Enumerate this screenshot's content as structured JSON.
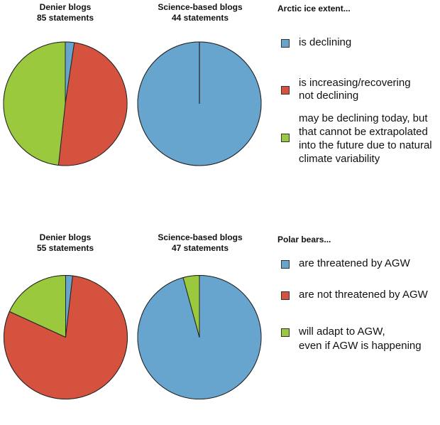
{
  "colors": {
    "blue": "#67a5cf",
    "red": "#d4523e",
    "green": "#9bc93d",
    "outline": "#222222"
  },
  "chart_data": [
    {
      "type": "pie",
      "title": "Arctic ice extent...",
      "legend": [
        "is declining",
        "is increasing/recovering not declining",
        "may be declining today, but that cannot be extrapolated into the future due to natural climate variability"
      ],
      "legend_position": "right",
      "pies": [
        {
          "title": "Denier blogs",
          "subtitle": "85  statements",
          "total": 85,
          "categories": [
            "is declining",
            "is increasing/recovering not declining",
            "may be declining today, but that cannot be extrapolated into the future due to natural climate variability"
          ],
          "values": [
            2,
            42,
            41
          ],
          "percent": [
            2.4,
            49.4,
            48.2
          ]
        },
        {
          "title": "Science-based blogs",
          "subtitle": "44 statements",
          "total": 44,
          "categories": [
            "is declining",
            "is increasing/recovering not declining",
            "may be declining today, but that cannot be extrapolated into the future due to natural climate variability"
          ],
          "values": [
            44,
            0,
            0
          ],
          "percent": [
            100,
            0,
            0
          ]
        }
      ]
    },
    {
      "type": "pie",
      "title": "Polar bears...",
      "legend": [
        "are threatened by AGW",
        "are not threatened by AGW",
        "will adapt to AGW, even if AGW is happening"
      ],
      "legend_position": "right",
      "pies": [
        {
          "title": "Denier blogs",
          "subtitle": "55 statements",
          "total": 55,
          "categories": [
            "are threatened by AGW",
            "are not threatened by AGW",
            "will adapt to AGW, even if AGW is happening"
          ],
          "values": [
            1,
            44,
            10
          ],
          "percent": [
            1.8,
            80.0,
            18.2
          ]
        },
        {
          "title": "Science-based blogs",
          "subtitle": "47 statements",
          "total": 47,
          "categories": [
            "are threatened by AGW",
            "are not threatened by AGW",
            "will adapt to AGW, even if AGW is happening"
          ],
          "values": [
            45,
            0,
            2
          ],
          "percent": [
            95.7,
            0,
            4.3
          ]
        }
      ]
    }
  ],
  "panels": {
    "arctic": {
      "title": "Arctic ice extent...",
      "pie1": {
        "title": "Denier blogs",
        "subtitle": "85  statements"
      },
      "pie2": {
        "title": "Science-based blogs",
        "subtitle": "44 statements"
      },
      "legend": [
        {
          "label": "is declining"
        },
        {
          "label": "is increasing/recovering\nnot declining"
        },
        {
          "label": "may be declining today, but\nthat cannot be extrapolated\ninto the future due to natural\nclimate variability"
        }
      ]
    },
    "bears": {
      "title": "Polar bears...",
      "pie1": {
        "title": "Denier blogs",
        "subtitle": "55 statements"
      },
      "pie2": {
        "title": "Science-based blogs",
        "subtitle": "47 statements"
      },
      "legend": [
        {
          "label": "are threatened by AGW"
        },
        {
          "label": "are not threatened by AGW"
        },
        {
          "label": "will adapt to AGW,\neven if AGW is happening"
        }
      ]
    }
  }
}
